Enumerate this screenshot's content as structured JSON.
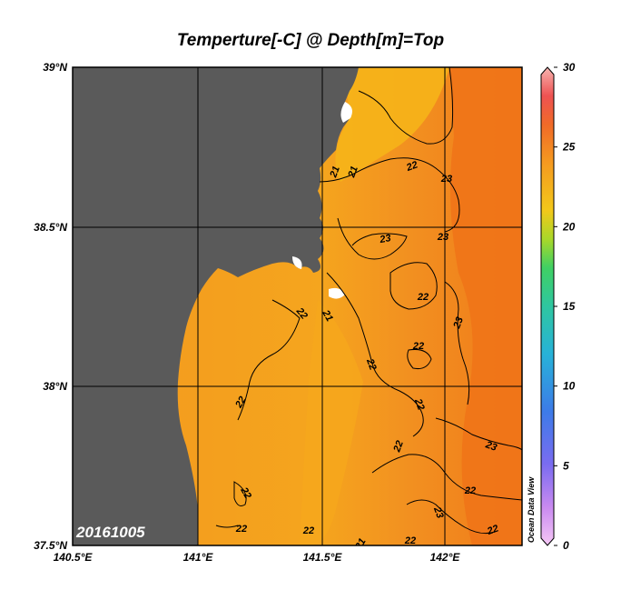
{
  "title": "Temperture[-C] @ Depth[m]=Top",
  "date_label": "20161005",
  "watermark": "Ocean Data View",
  "lat_ticks": [
    "39°N",
    "38.5°N",
    "38°N",
    "37.5°N"
  ],
  "lon_ticks": [
    "140.5°E",
    "141°E",
    "141.5°E",
    "142°E"
  ],
  "colorbar": {
    "ticks": [
      "30",
      "25",
      "20",
      "15",
      "10",
      "5",
      "0"
    ],
    "min": 0,
    "max": 30
  },
  "contour_labels": [
    {
      "text": "21"
    },
    {
      "text": "21"
    },
    {
      "text": "22"
    },
    {
      "text": "23"
    },
    {
      "text": "23"
    },
    {
      "text": "23"
    },
    {
      "text": "22"
    },
    {
      "text": "22"
    },
    {
      "text": "21"
    },
    {
      "text": "23"
    },
    {
      "text": "22"
    },
    {
      "text": "22"
    },
    {
      "text": "22"
    },
    {
      "text": "22"
    },
    {
      "text": "22"
    },
    {
      "text": "23"
    },
    {
      "text": "22"
    },
    {
      "text": "22"
    },
    {
      "text": "23"
    },
    {
      "text": "22"
    },
    {
      "text": "22"
    },
    {
      "text": "22"
    },
    {
      "text": "21"
    },
    {
      "text": "22"
    }
  ],
  "colors": {
    "land": "#5a5a5a",
    "sea_warm": "#f08a1e",
    "sea_mid": "#f59a20",
    "sea_cool": "#f6ad1c",
    "sea_hot": "#f07018",
    "no_data": "#ffffff"
  }
}
